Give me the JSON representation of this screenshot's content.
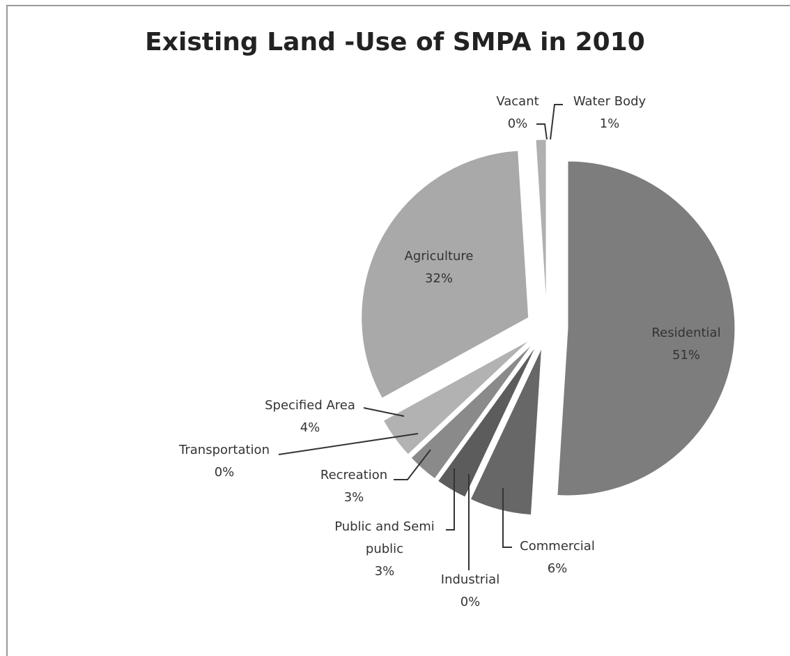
{
  "chart_data": {
    "type": "pie",
    "title": "Existing Land -Use of SMPA in 2010",
    "categories": [
      "Residential",
      "Commercial",
      "Industrial",
      "Public and Semi public",
      "Recreation",
      "Transportation",
      "Specified Area",
      "Agriculture",
      "Vacant",
      "Water Body"
    ],
    "values": [
      51,
      6,
      0,
      3,
      3,
      0,
      4,
      32,
      0,
      1
    ],
    "value_labels": [
      "51%",
      "6%",
      "0%",
      "3%",
      "3%",
      "0%",
      "4%",
      "32%",
      "0%",
      "1%"
    ],
    "colors": [
      "#7d7d7d",
      "#676767",
      "#8c8c8c",
      "#5c5c5c",
      "#8a8a8a",
      "#9a9a9a",
      "#b2b2b2",
      "#a9a9a9",
      "#9a9a9a",
      "#b0b0b0"
    ]
  }
}
